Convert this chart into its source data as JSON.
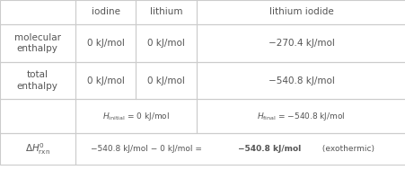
{
  "bg_color": "#ffffff",
  "border_color": "#cccccc",
  "text_color": "#555555",
  "headers": [
    "",
    "iodine",
    "lithium",
    "lithium iodide"
  ],
  "row1_label": "molecular\nenthalpy",
  "row1_vals": [
    "0 kJ/mol",
    "0 kJ/mol",
    "−270.4 kJ/mol"
  ],
  "row2_label": "total\nenthalpy",
  "row2_vals": [
    "0 kJ/mol",
    "0 kJ/mol",
    "−540.8 kJ/mol"
  ],
  "row4_label_math": "$\\Delta H^0_{\\mathrm{rxn}}$",
  "prefix": "−540.8 kJ/mol − 0 kJ/mol = ",
  "bold_part": "−540.8 kJ/mol",
  "suffix": " (exothermic)"
}
